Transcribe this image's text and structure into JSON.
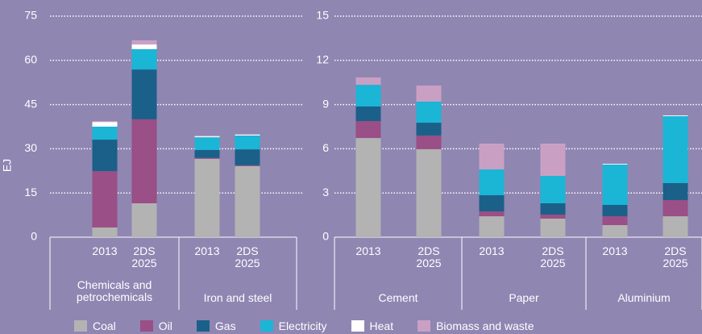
{
  "chart_data": [
    {
      "type": "bar",
      "stacked": true,
      "ylabel": "EJ",
      "ylim": [
        0,
        75
      ],
      "yticks": [
        0,
        15,
        30,
        45,
        60,
        75
      ],
      "grid": true,
      "categories": [
        "2013",
        "2DS 2025",
        "2013",
        "2DS 2025"
      ],
      "groups": [
        "Chemicals and petrochemicals",
        "Iron and steel"
      ],
      "series": [
        {
          "name": "Coal",
          "color": "#b3b3b3",
          "values": [
            3.3,
            11.5,
            26.6,
            24.1
          ]
        },
        {
          "name": "Oil",
          "color": "#9a4f86",
          "values": [
            19.1,
            28.5,
            0.3,
            0.3
          ]
        },
        {
          "name": "Gas",
          "color": "#1a6089",
          "values": [
            10.7,
            16.9,
            2.7,
            5.4
          ]
        },
        {
          "name": "Electricity",
          "color": "#1bb5d6",
          "values": [
            4.4,
            6.9,
            4.3,
            4.7
          ]
        },
        {
          "name": "Heat",
          "color": "#ffffff",
          "values": [
            1.6,
            1.6,
            0.3,
            0.3
          ]
        },
        {
          "name": "Biomass and waste",
          "color": "#c9a0c4",
          "values": [
            0.3,
            1.4,
            0.3,
            0.2
          ]
        }
      ]
    },
    {
      "type": "bar",
      "stacked": true,
      "ylim": [
        0,
        15
      ],
      "yticks": [
        0,
        3,
        6,
        9,
        12,
        15
      ],
      "grid": true,
      "categories": [
        "2013",
        "2DS 2025",
        "2013",
        "2DS 2025",
        "2013",
        "2DS 2025"
      ],
      "groups": [
        "Cement",
        "Paper",
        "Aluminium"
      ],
      "series": [
        {
          "values": [
            6.73,
            5.97,
            1.42,
            1.26,
            0.82,
            1.42
          ]
        },
        {
          "values": [
            1.15,
            0.93,
            0.33,
            0.27,
            0.6,
            1.1
          ]
        },
        {
          "values": [
            0.99,
            0.87,
            1.1,
            0.77,
            0.77,
            1.15
          ]
        },
        {
          "values": [
            1.47,
            1.43,
            1.75,
            1.86,
            2.74,
            4.54
          ]
        },
        {
          "values": [
            0,
            0,
            0,
            0,
            0.05,
            0.05
          ]
        },
        {
          "values": [
            0.5,
            1.09,
            1.75,
            2.19,
            0,
            0
          ]
        }
      ]
    }
  ]
}
